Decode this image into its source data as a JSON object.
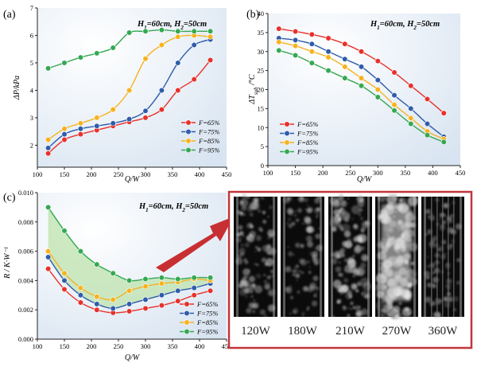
{
  "colors": {
    "red": "#e8312b",
    "blue": "#2f5cab",
    "yellow": "#f7b21f",
    "green": "#35a852",
    "frame": "#c0363a",
    "arrow": "#c72f32",
    "band": "#bde3ae",
    "plotbg": "#e6edf6"
  },
  "chart_data": [
    {
      "id": "a",
      "panel_label": "(a)",
      "type": "line",
      "annotation": "H1=60cm, H2=50cm",
      "xlabel": "Q/W",
      "ylabel": "ΔP/kPa",
      "xlim": [
        100,
        450
      ],
      "ylim": [
        1.2,
        7
      ],
      "xticks": [
        100,
        150,
        200,
        250,
        300,
        350,
        400,
        450
      ],
      "yticks": [
        2,
        3,
        4,
        5,
        6,
        7
      ],
      "legend_position": "bottom-right",
      "series": [
        {
          "name": "F=65%",
          "color": "red",
          "x": [
            120,
            150,
            180,
            210,
            240,
            270,
            300,
            330,
            360,
            390,
            420
          ],
          "y": [
            1.7,
            2.2,
            2.4,
            2.55,
            2.7,
            2.85,
            3.0,
            3.3,
            4.0,
            4.4,
            5.1
          ]
        },
        {
          "name": "F=75%",
          "color": "blue",
          "x": [
            120,
            150,
            180,
            210,
            240,
            270,
            300,
            330,
            360,
            390,
            420
          ],
          "y": [
            1.9,
            2.4,
            2.6,
            2.7,
            2.8,
            2.95,
            3.25,
            4.0,
            5.0,
            5.65,
            5.85
          ]
        },
        {
          "name": "F=85%",
          "color": "yellow",
          "x": [
            120,
            150,
            180,
            210,
            240,
            270,
            300,
            330,
            360,
            390,
            420
          ],
          "y": [
            2.2,
            2.6,
            2.8,
            3.0,
            3.3,
            4.0,
            5.15,
            5.65,
            5.95,
            6.0,
            5.95
          ]
        },
        {
          "name": "F=95%",
          "color": "green",
          "x": [
            120,
            150,
            180,
            210,
            240,
            270,
            300,
            330,
            360,
            390,
            420
          ],
          "y": [
            4.8,
            5.0,
            5.2,
            5.35,
            5.55,
            6.1,
            6.15,
            6.2,
            6.15,
            6.15,
            6.15
          ]
        }
      ]
    },
    {
      "id": "b",
      "panel_label": "(b)",
      "type": "line",
      "annotation": "H1=60cm, H2=50cm",
      "xlabel": "Q/W",
      "ylabel": "ΔTsub/°C",
      "xlim": [
        100,
        450
      ],
      "ylim": [
        0,
        40
      ],
      "xticks": [
        100,
        150,
        200,
        250,
        300,
        350,
        400,
        450
      ],
      "yticks": [
        0,
        5,
        10,
        15,
        20,
        25,
        30,
        35,
        40
      ],
      "legend_position": "bottom-left",
      "series": [
        {
          "name": "F=65%",
          "color": "red",
          "x": [
            120,
            150,
            180,
            210,
            240,
            270,
            300,
            330,
            360,
            390,
            420
          ],
          "y": [
            36,
            35.3,
            34.5,
            33.5,
            32,
            30,
            27.5,
            24.5,
            21,
            17.5,
            13.8
          ]
        },
        {
          "name": "F=75%",
          "color": "blue",
          "x": [
            120,
            150,
            180,
            210,
            240,
            270,
            300,
            330,
            360,
            390,
            420
          ],
          "y": [
            33.5,
            33,
            32,
            30,
            28,
            26,
            22.5,
            18.5,
            15,
            11,
            7.6
          ]
        },
        {
          "name": "F=85%",
          "color": "yellow",
          "x": [
            120,
            150,
            180,
            210,
            240,
            270,
            300,
            330,
            360,
            390,
            420
          ],
          "y": [
            32.5,
            31.5,
            30,
            28.5,
            26,
            23,
            20,
            16,
            12.5,
            9,
            7
          ]
        },
        {
          "name": "F=95%",
          "color": "green",
          "x": [
            120,
            150,
            180,
            210,
            240,
            270,
            300,
            330,
            360,
            390,
            420
          ],
          "y": [
            30.3,
            29,
            27,
            25,
            23,
            21,
            18,
            14.5,
            11,
            8,
            6.2
          ]
        }
      ]
    },
    {
      "id": "c",
      "panel_label": "(c)",
      "type": "line",
      "annotation": "H1=60cm, H2=50cm",
      "xlabel": "Q/W",
      "ylabel": "R / K·W⁻¹",
      "xlim": [
        100,
        450
      ],
      "ylim": [
        0,
        0.01
      ],
      "xticks": [
        100,
        150,
        200,
        250,
        300,
        350,
        400,
        450
      ],
      "yticks": [
        "0.000",
        "0.002",
        "0.004",
        "0.006",
        "0.008",
        "0.010"
      ],
      "legend_position": "bottom-right",
      "shaded_band": true,
      "series": [
        {
          "name": "F=65%",
          "color": "red",
          "x": [
            120,
            150,
            180,
            210,
            240,
            270,
            300,
            330,
            360,
            390,
            420
          ],
          "y": [
            0.0048,
            0.0034,
            0.0025,
            0.002,
            0.0018,
            0.0019,
            0.0021,
            0.0023,
            0.0026,
            0.003,
            0.0033
          ]
        },
        {
          "name": "F=75%",
          "color": "blue",
          "x": [
            120,
            150,
            180,
            210,
            240,
            270,
            300,
            330,
            360,
            390,
            420
          ],
          "y": [
            0.0056,
            0.004,
            0.003,
            0.0024,
            0.0021,
            0.0024,
            0.0027,
            0.003,
            0.0033,
            0.0035,
            0.0038
          ]
        },
        {
          "name": "F=85%",
          "color": "yellow",
          "x": [
            120,
            150,
            180,
            210,
            240,
            270,
            300,
            330,
            360,
            390,
            420
          ],
          "y": [
            0.006,
            0.0045,
            0.0035,
            0.0029,
            0.0027,
            0.0033,
            0.0036,
            0.0038,
            0.0039,
            0.0041,
            0.004
          ]
        },
        {
          "name": "F=95%",
          "color": "green",
          "x": [
            120,
            150,
            180,
            210,
            240,
            270,
            300,
            330,
            360,
            390,
            420
          ],
          "y": [
            0.009,
            0.0074,
            0.006,
            0.0051,
            0.0045,
            0.004,
            0.0041,
            0.0042,
            0.0041,
            0.0042,
            0.0042
          ]
        }
      ]
    }
  ],
  "photo_strip": {
    "labels": [
      "120W",
      "180W",
      "210W",
      "270W",
      "360W"
    ]
  }
}
